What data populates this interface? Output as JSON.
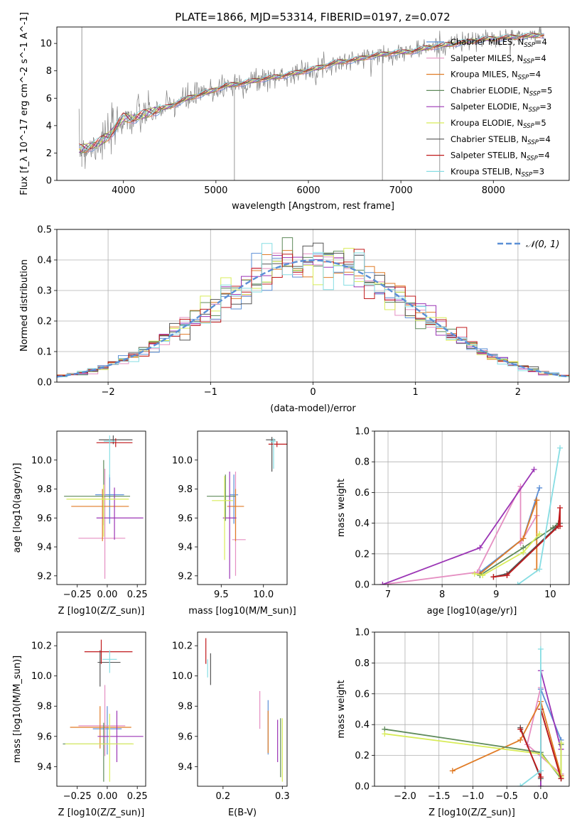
{
  "figure": {
    "title": "PLATE=1866, MJD=53314, FIBERID=0197, z=0.072"
  },
  "colors": {
    "Chabrier MILES": "#5b8fd6",
    "Salpeter MILES": "#e58fc2",
    "Kroupa MILES": "#e07b25",
    "Chabrier ELODIE": "#5e8a5a",
    "Salpeter ELODIE": "#9b35b5",
    "Kroupa ELODIE": "#d8ec58",
    "Chabrier STELIB": "#555555",
    "Salpeter STELIB": "#c0191b",
    "Kroupa STELIB": "#86dde3",
    "data": "#808080",
    "normal": "#5b8fd6"
  },
  "chart_data": [
    {
      "id": "spectrum",
      "type": "line",
      "xlabel": "wavelength [Angstrom, rest frame]",
      "ylabel": "Flux [f_λ 10^-17 erg cm^-2 s^-1 A^-1]",
      "xlim": [
        3280,
        8820
      ],
      "ylim": [
        0,
        11.2
      ],
      "xticks": [
        4000,
        5000,
        6000,
        7000,
        8000
      ],
      "yticks": [
        0,
        2,
        4,
        6,
        8,
        10
      ],
      "grid": false,
      "legend_position": "right",
      "legend": [
        {
          "model": "Chabrier MILES",
          "nssp": 4
        },
        {
          "model": "Salpeter MILES",
          "nssp": 4
        },
        {
          "model": "Kroupa MILES",
          "nssp": 4
        },
        {
          "model": "Chabrier ELODIE",
          "nssp": 5
        },
        {
          "model": "Salpeter ELODIE",
          "nssp": 3
        },
        {
          "model": "Kroupa ELODIE",
          "nssp": 5
        },
        {
          "model": "Chabrier STELIB",
          "nssp": 4
        },
        {
          "model": "Salpeter STELIB",
          "nssp": 4
        },
        {
          "model": "Kroupa STELIB",
          "nssp": 3
        }
      ],
      "data_curve": {
        "x": [
          3550,
          3700,
          3850,
          4000,
          4100,
          4300,
          4500,
          4700,
          4900,
          5100,
          5300,
          5500,
          5700,
          5900,
          6100,
          6300,
          6500,
          6700,
          6900,
          7100,
          7300,
          7500,
          7700,
          7900,
          8100,
          8300,
          8500
        ],
        "y": [
          2.3,
          2.6,
          3.3,
          4.6,
          4.5,
          5.0,
          5.4,
          6.0,
          6.4,
          6.9,
          7.1,
          7.4,
          7.6,
          7.9,
          8.2,
          8.6,
          8.8,
          9.1,
          9.3,
          9.4,
          9.7,
          9.9,
          10.1,
          10.3,
          10.4,
          10.5,
          10.6
        ]
      },
      "spikes": [
        {
          "x": 3550,
          "y0": 1.0,
          "y1": 11.2
        },
        {
          "x": 5200,
          "y0": 0.0,
          "y1": 7.5
        },
        {
          "x": 6800,
          "y0": 0.0,
          "y1": 9.2
        },
        {
          "x": 7420,
          "y0": 0.0,
          "y1": 9.6
        }
      ]
    },
    {
      "id": "residual_histogram",
      "type": "line",
      "xlabel": "(data-model)/error",
      "ylabel": "Normed distribution",
      "xlim": [
        -2.5,
        2.5
      ],
      "ylim": [
        0,
        0.5
      ],
      "xticks": [
        -2,
        -1,
        0,
        1,
        2
      ],
      "yticks": [
        0.0,
        0.1,
        0.2,
        0.3,
        0.4,
        0.5
      ],
      "grid": true,
      "legend": [
        "𝒩(0, 1)"
      ],
      "legend_position": "top-right",
      "bin_width": 0.1,
      "reference_curve": "standard normal",
      "series_shape": "step histogram of residuals for each of the 9 model fits, approximately normal, peak ~0.40-0.47"
    },
    {
      "id": "age_vs_Z",
      "type": "scatter",
      "xlabel": "Z [log10(Z/Z_sun)]",
      "ylabel": "age [log10(age/yr)]",
      "xlim": [
        -0.42,
        0.32
      ],
      "ylim": [
        9.14,
        10.2
      ],
      "xticks": [
        -0.25,
        0.0,
        0.25
      ],
      "yticks": [
        9.2,
        9.4,
        9.6,
        9.8,
        10.0
      ],
      "grid": false,
      "errorbars": [
        {
          "model": "Chabrier MILES",
          "x": 0.02,
          "y": 9.76,
          "xerr": [
            0.12,
            0.12
          ],
          "yerr": [
            0.2,
            0.14
          ]
        },
        {
          "model": "Salpeter MILES",
          "x": -0.02,
          "y": 9.46,
          "xerr": [
            0.22,
            0.17
          ],
          "yerr": [
            0.28,
            0.48
          ]
        },
        {
          "model": "Kroupa MILES",
          "x": -0.04,
          "y": 9.68,
          "xerr": [
            0.26,
            0.22
          ],
          "yerr": [
            0.24,
            0.12
          ]
        },
        {
          "model": "Chabrier ELODIE",
          "x": -0.03,
          "y": 9.75,
          "xerr": [
            0.33,
            0.22
          ],
          "yerr": [
            0.2,
            0.25
          ]
        },
        {
          "model": "Salpeter ELODIE",
          "x": 0.06,
          "y": 9.6,
          "xerr": [
            0.15,
            0.24
          ],
          "yerr": [
            0.15,
            0.21
          ]
        },
        {
          "model": "Kroupa ELODIE",
          "x": -0.03,
          "y": 9.73,
          "xerr": [
            0.31,
            0.21
          ],
          "yerr": [
            0.26,
            0.1
          ]
        },
        {
          "model": "Chabrier STELIB",
          "x": 0.05,
          "y": 10.14,
          "xerr": [
            0.12,
            0.16
          ],
          "yerr": [
            0.03,
            0.03
          ]
        },
        {
          "model": "Salpeter STELIB",
          "x": 0.07,
          "y": 10.12,
          "xerr": [
            0.16,
            0.14
          ],
          "yerr": [
            0.03,
            0.03
          ]
        },
        {
          "model": "Kroupa STELIB",
          "x": 0.02,
          "y": 10.13,
          "xerr": [
            0.05,
            0.05
          ],
          "yerr": [
            0.25,
            0.04
          ]
        }
      ]
    },
    {
      "id": "age_vs_mass",
      "type": "scatter",
      "xlabel": "mass [log10(M/M_sun)]",
      "ylabel": "",
      "xlim": [
        9.22,
        10.28
      ],
      "ylim": [
        9.14,
        10.2
      ],
      "xticks": [
        9.5,
        10.0
      ],
      "yticks": [
        9.2,
        9.4,
        9.6,
        9.8,
        10.0
      ],
      "grid": false,
      "errorbars": [
        {
          "model": "Chabrier MILES",
          "x": 9.65,
          "y": 9.76,
          "xerr": [
            0.05,
            0.05
          ],
          "yerr": [
            0.2,
            0.14
          ]
        },
        {
          "model": "Salpeter MILES",
          "x": 9.67,
          "y": 9.45,
          "xerr": [
            0.04,
            0.12
          ],
          "yerr": [
            0.25,
            0.47
          ]
        },
        {
          "model": "Kroupa MILES",
          "x": 9.67,
          "y": 9.68,
          "xerr": [
            0.1,
            0.1
          ],
          "yerr": [
            0.24,
            0.12
          ]
        },
        {
          "model": "Chabrier ELODIE",
          "x": 9.55,
          "y": 9.75,
          "xerr": [
            0.22,
            0.12
          ],
          "yerr": [
            0.17,
            0.15
          ]
        },
        {
          "model": "Salpeter ELODIE",
          "x": 9.6,
          "y": 9.6,
          "xerr": [
            0.08,
            0.08
          ],
          "yerr": [
            0.42,
            0.32
          ]
        },
        {
          "model": "Kroupa ELODIE",
          "x": 9.54,
          "y": 9.72,
          "xerr": [
            0.15,
            0.1
          ],
          "yerr": [
            0.41,
            0.17
          ]
        },
        {
          "model": "Chabrier STELIB",
          "x": 10.1,
          "y": 10.14,
          "xerr": [
            0.07,
            0.04
          ],
          "yerr": [
            0.22,
            0.02
          ]
        },
        {
          "model": "Salpeter STELIB",
          "x": 10.16,
          "y": 10.11,
          "xerr": [
            0.1,
            0.14
          ],
          "yerr": [
            0.02,
            0.02
          ]
        },
        {
          "model": "Kroupa STELIB",
          "x": 10.12,
          "y": 10.13,
          "xerr": [
            0.04,
            0.03
          ],
          "yerr": [
            0.19,
            0.02
          ]
        }
      ]
    },
    {
      "id": "mass_weight_vs_age",
      "type": "line",
      "xlabel": "age [log10(age/yr)]",
      "ylabel": "mass weight",
      "xlim": [
        6.75,
        10.35
      ],
      "ylim": [
        0,
        1.0
      ],
      "xticks": [
        7,
        8,
        9,
        10
      ],
      "yticks": [
        0.0,
        0.2,
        0.4,
        0.6,
        0.8,
        1.0
      ],
      "grid": true,
      "series": [
        {
          "model": "Chabrier MILES",
          "x": [
            8.7,
            9.5,
            9.8
          ],
          "y": [
            0.08,
            0.3,
            0.63
          ]
        },
        {
          "model": "Salpeter MILES",
          "x": [
            6.9,
            8.65,
            9.45,
            9.45,
            9.75
          ],
          "y": [
            0.0,
            0.08,
            0.64,
            0.27,
            0.45
          ]
        },
        {
          "model": "Kroupa MILES",
          "x": [
            8.7,
            9.5,
            9.75,
            9.75
          ],
          "y": [
            0.07,
            0.3,
            0.55,
            0.1
          ]
        },
        {
          "model": "Chabrier ELODIE",
          "x": [
            8.7,
            9.5,
            10.05,
            10.15
          ],
          "y": [
            0.06,
            0.24,
            0.37,
            0.4
          ]
        },
        {
          "model": "Salpeter ELODIE",
          "x": [
            6.9,
            8.7,
            9.7
          ],
          "y": [
            0.0,
            0.24,
            0.75
          ]
        },
        {
          "model": "Kroupa ELODIE",
          "x": [
            8.6,
            8.75,
            9.5,
            9.8
          ],
          "y": [
            0.07,
            0.06,
            0.21,
            0.33
          ]
        },
        {
          "model": "Chabrier STELIB",
          "x": [
            8.95,
            9.2,
            10.1,
            10.18
          ],
          "y": [
            0.05,
            0.07,
            0.37,
            0.4
          ]
        },
        {
          "model": "Salpeter STELIB",
          "x": [
            8.95,
            9.2,
            10.15,
            10.18,
            10.18
          ],
          "y": [
            0.05,
            0.06,
            0.38,
            0.5,
            0.38
          ]
        },
        {
          "model": "Kroupa STELIB",
          "x": [
            9.4,
            9.8,
            10.18
          ],
          "y": [
            0.0,
            0.1,
            0.89
          ]
        }
      ]
    },
    {
      "id": "mass_vs_Z",
      "type": "scatter",
      "xlabel": "Z [log10(Z/Z_sun)]",
      "ylabel": "mass [log10(M/M_sun)]",
      "xlim": [
        -0.42,
        0.32
      ],
      "ylim": [
        9.27,
        10.29
      ],
      "xticks": [
        -0.25,
        0.0,
        0.25
      ],
      "yticks": [
        9.4,
        9.6,
        9.8,
        10.0,
        10.2
      ],
      "grid": false,
      "errorbars": [
        {
          "model": "Chabrier MILES",
          "x": 0.0,
          "y": 9.65,
          "xerr": [
            0.12,
            0.12
          ],
          "yerr": [
            0.17,
            0.15
          ]
        },
        {
          "model": "Salpeter MILES",
          "x": -0.02,
          "y": 9.67,
          "xerr": [
            0.22,
            0.17
          ],
          "yerr": [
            0.2,
            0.27
          ]
        },
        {
          "model": "Kroupa MILES",
          "x": -0.06,
          "y": 9.66,
          "xerr": [
            0.25,
            0.26
          ],
          "yerr": [
            0.14,
            0.14
          ]
        },
        {
          "model": "Chabrier ELODIE",
          "x": -0.03,
          "y": 9.55,
          "xerr": [
            0.34,
            0.24
          ],
          "yerr": [
            0.25,
            0.14
          ]
        },
        {
          "model": "Salpeter ELODIE",
          "x": 0.08,
          "y": 9.6,
          "xerr": [
            0.16,
            0.22
          ],
          "yerr": [
            0.17,
            0.17
          ]
        },
        {
          "model": "Kroupa ELODIE",
          "x": 0.02,
          "y": 9.55,
          "xerr": [
            0.37,
            0.2
          ],
          "yerr": [
            0.25,
            0.2
          ]
        },
        {
          "model": "Chabrier STELIB",
          "x": -0.06,
          "y": 10.09,
          "xerr": [
            0.02,
            0.17
          ],
          "yerr": [
            0.16,
            0.08
          ]
        },
        {
          "model": "Salpeter STELIB",
          "x": -0.05,
          "y": 10.16,
          "xerr": [
            0.14,
            0.26
          ],
          "yerr": [
            0.08,
            0.08
          ]
        },
        {
          "model": "Kroupa STELIB",
          "x": 0.02,
          "y": 10.11,
          "xerr": [
            0.06,
            0.06
          ],
          "yerr": [
            0.09,
            0.06
          ]
        }
      ]
    },
    {
      "id": "mass_vs_ebv",
      "type": "scatter",
      "xlabel": "E(B-V)",
      "ylabel": "",
      "xlim": [
        0.157,
        0.308
      ],
      "ylim": [
        9.27,
        10.29
      ],
      "xticks": [
        0.2,
        0.3
      ],
      "yticks": [
        9.4,
        9.6,
        9.8,
        10.0,
        10.2
      ],
      "grid": false,
      "errorbars": [
        {
          "model": "Chabrier MILES",
          "x": 0.276,
          "y": 9.65,
          "xerr": [
            0,
            0
          ],
          "yerr": [
            0.17,
            0.19
          ]
        },
        {
          "model": "Salpeter MILES",
          "x": 0.262,
          "y": 9.8,
          "xerr": [
            0,
            0
          ],
          "yerr": [
            0.15,
            0.1
          ]
        },
        {
          "model": "Kroupa MILES",
          "x": 0.276,
          "y": 9.63,
          "xerr": [
            0,
            0
          ],
          "yerr": [
            0.14,
            0.14
          ]
        },
        {
          "model": "Chabrier ELODIE",
          "x": 0.297,
          "y": 9.55,
          "xerr": [
            0,
            0
          ],
          "yerr": [
            0.22,
            0.17
          ]
        },
        {
          "model": "Salpeter ELODIE",
          "x": 0.292,
          "y": 9.57,
          "xerr": [
            0,
            0
          ],
          "yerr": [
            0.14,
            0.14
          ]
        },
        {
          "model": "Kroupa ELODIE",
          "x": 0.3,
          "y": 9.52,
          "xerr": [
            0,
            0
          ],
          "yerr": [
            0.22,
            0.2
          ]
        },
        {
          "model": "Chabrier STELIB",
          "x": 0.179,
          "y": 10.05,
          "xerr": [
            0,
            0
          ],
          "yerr": [
            0.11,
            0.1
          ]
        },
        {
          "model": "Salpeter STELIB",
          "x": 0.171,
          "y": 10.15,
          "xerr": [
            0,
            0
          ],
          "yerr": [
            0.07,
            0.1
          ]
        },
        {
          "model": "Kroupa STELIB",
          "x": 0.174,
          "y": 10.05,
          "xerr": [
            0,
            0
          ],
          "yerr": [
            0.06,
            0.06
          ]
        }
      ]
    },
    {
      "id": "mass_weight_vs_Z",
      "type": "line",
      "xlabel": "Z [log10(Z/Z_sun)]",
      "ylabel": "mass weight",
      "xlim": [
        -2.45,
        0.42
      ],
      "ylim": [
        0,
        1.0
      ],
      "xticks": [
        -2.0,
        -1.5,
        -1.0,
        -0.5,
        0.0
      ],
      "yticks": [
        0.0,
        0.2,
        0.4,
        0.6,
        0.8,
        1.0
      ],
      "grid": true,
      "series": [
        {
          "model": "Chabrier MILES",
          "x": [
            0.0,
            0.0,
            0.3,
            0.3
          ],
          "y": [
            0.1,
            0.63,
            0.3,
            0.08
          ]
        },
        {
          "model": "Salpeter MILES",
          "x": [
            0.0,
            0.0,
            -0.2,
            0.3
          ],
          "y": [
            0.0,
            0.64,
            0.27,
            0.08
          ]
        },
        {
          "model": "Kroupa MILES",
          "x": [
            -1.3,
            -0.3,
            0.0,
            0.3
          ],
          "y": [
            0.1,
            0.3,
            0.55,
            0.07
          ]
        },
        {
          "model": "Chabrier ELODIE",
          "x": [
            -2.3,
            0.0,
            0.3,
            0.3
          ],
          "y": [
            0.37,
            0.22,
            0.05,
            0.27
          ]
        },
        {
          "model": "Salpeter ELODIE",
          "x": [
            0.0,
            0.0,
            0.3
          ],
          "y": [
            0.0,
            0.75,
            0.24
          ]
        },
        {
          "model": "Kroupa ELODIE",
          "x": [
            -2.3,
            0.0,
            0.3,
            0.3
          ],
          "y": [
            0.34,
            0.21,
            0.06,
            0.28
          ]
        },
        {
          "model": "Chabrier STELIB",
          "x": [
            -0.3,
            0.0,
            0.0,
            0.3
          ],
          "y": [
            0.38,
            0.05,
            0.5,
            0.05
          ]
        },
        {
          "model": "Salpeter STELIB",
          "x": [
            -0.3,
            0.0,
            0.0,
            0.3
          ],
          "y": [
            0.37,
            0.06,
            0.5,
            0.05
          ]
        },
        {
          "model": "Kroupa STELIB",
          "x": [
            -0.3,
            0.0,
            0.0
          ],
          "y": [
            0.0,
            0.1,
            0.89
          ]
        }
      ]
    }
  ]
}
